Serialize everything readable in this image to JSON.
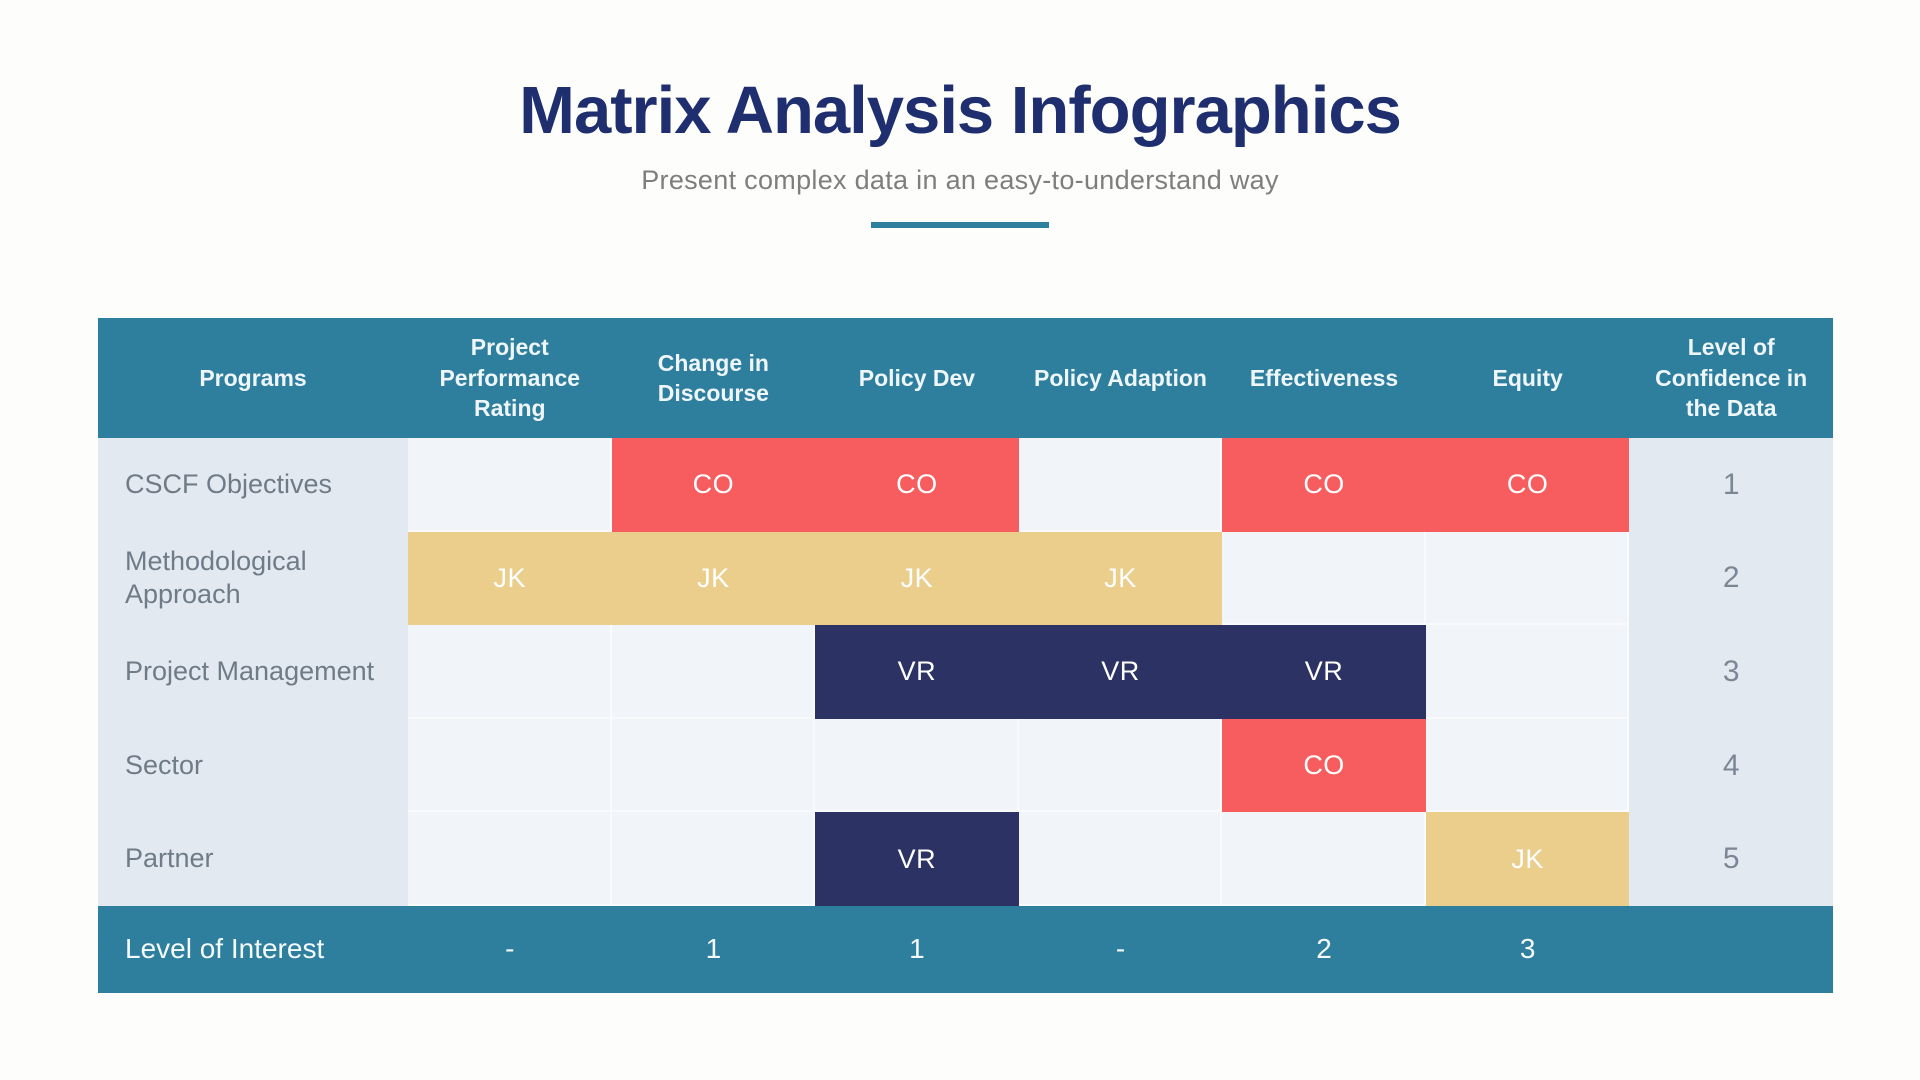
{
  "header": {
    "title": "Matrix Analysis Infographics",
    "subtitle": "Present complex data in an easy-to-understand way"
  },
  "colors": {
    "teal": "#2E7E9E",
    "title_navy": "#1F2E6E",
    "subtitle_gray": "#7E7E7E",
    "red": "#F75D5E",
    "tan": "#EBCE8C",
    "navy": "#2C3263",
    "row_label_bg": "#E3E9F0",
    "cell_bg": "#F1F4F8",
    "label_text": "#6F7B87"
  },
  "chart_data": {
    "type": "table",
    "title": "Matrix Analysis Infographics",
    "subtitle": "Present complex data in an easy-to-understand way",
    "columns": [
      "Programs",
      "Project Performance Rating",
      "Change in Discourse",
      "Policy Dev",
      "Policy Adaption",
      "Effectiveness",
      "Equity",
      "Level of Confidence in the Data"
    ],
    "palette": {
      "red": "#F75D5E",
      "tan": "#EBCE8C",
      "navy": "#2C3263"
    },
    "rows": [
      {
        "program": "CSCF Objectives",
        "cells": [
          {
            "text": "",
            "color": null
          },
          {
            "text": "CO",
            "color": "red"
          },
          {
            "text": "CO",
            "color": "red"
          },
          {
            "text": "",
            "color": null
          },
          {
            "text": "CO",
            "color": "red"
          },
          {
            "text": "CO",
            "color": "red"
          }
        ],
        "confidence": "1"
      },
      {
        "program": "Methodological Approach",
        "cells": [
          {
            "text": "JK",
            "color": "tan"
          },
          {
            "text": "JK",
            "color": "tan"
          },
          {
            "text": "JK",
            "color": "tan"
          },
          {
            "text": "JK",
            "color": "tan"
          },
          {
            "text": "",
            "color": null
          },
          {
            "text": "",
            "color": null
          }
        ],
        "confidence": "2"
      },
      {
        "program": "Project Management",
        "cells": [
          {
            "text": "",
            "color": null
          },
          {
            "text": "",
            "color": null
          },
          {
            "text": "VR",
            "color": "navy"
          },
          {
            "text": "VR",
            "color": "navy"
          },
          {
            "text": "VR",
            "color": "navy"
          },
          {
            "text": "",
            "color": null
          }
        ],
        "confidence": "3"
      },
      {
        "program": "Sector",
        "cells": [
          {
            "text": "",
            "color": null
          },
          {
            "text": "",
            "color": null
          },
          {
            "text": "",
            "color": null
          },
          {
            "text": "",
            "color": null
          },
          {
            "text": "CO",
            "color": "red"
          },
          {
            "text": "",
            "color": null
          }
        ],
        "confidence": "4"
      },
      {
        "program": "Partner",
        "cells": [
          {
            "text": "",
            "color": null
          },
          {
            "text": "",
            "color": null
          },
          {
            "text": "VR",
            "color": "navy"
          },
          {
            "text": "",
            "color": null
          },
          {
            "text": "",
            "color": null
          },
          {
            "text": "JK",
            "color": "tan"
          }
        ],
        "confidence": "5"
      }
    ],
    "footer": {
      "label": "Level of Interest",
      "values": [
        "-",
        "1",
        "1",
        "-",
        "2",
        "3"
      ],
      "confidence": ""
    }
  }
}
